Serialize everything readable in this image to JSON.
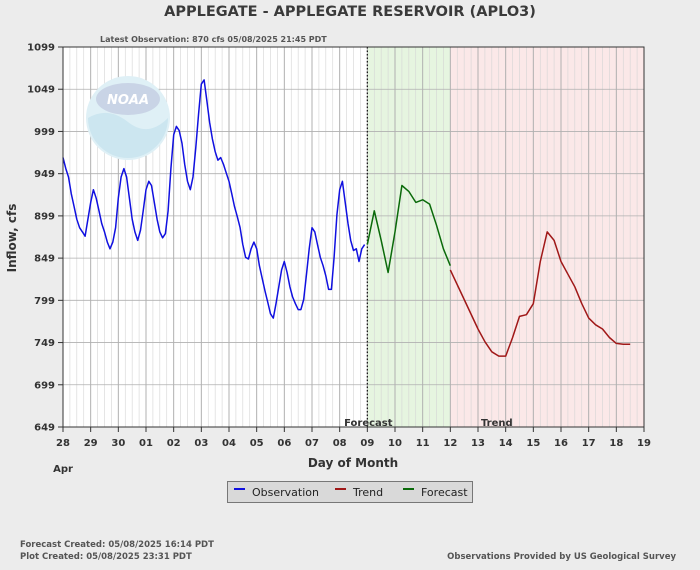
{
  "page": {
    "title": "APPLEGATE - APPLEGATE RESERVOIR  (APLO3)",
    "latest_observation": "Latest Observation: 870 cfs 05/08/2025 21:45 PDT",
    "forecast_created": "Forecast Created: 05/08/2025 16:14 PDT",
    "plot_created": "Plot Created: 05/08/2025 23:31 PDT",
    "provider": "Observations Provided by US Geological Survey",
    "logo_text": "NOAA"
  },
  "legend": [
    {
      "label": "Observation",
      "color": "#1010e0"
    },
    {
      "label": "Trend",
      "color": "#a01818"
    },
    {
      "label": "Forecast",
      "color": "#0a6a0a"
    }
  ],
  "chart_data": {
    "type": "line",
    "title": "APPLEGATE - APPLEGATE RESERVOIR  (APLO3)",
    "xlabel": "Day of Month",
    "ylabel": "Inflow, cfs",
    "x_unit": "day index (28 Apr = 0)",
    "xlim": [
      0,
      21
    ],
    "ylim": [
      649,
      1099
    ],
    "yticks": [
      649,
      699,
      749,
      799,
      849,
      899,
      949,
      999,
      1049,
      1099
    ],
    "xtick_labels": [
      "28",
      "29",
      "30",
      "01",
      "02",
      "03",
      "04",
      "05",
      "06",
      "07",
      "08",
      "09",
      "10",
      "11",
      "12",
      "13",
      "14",
      "15",
      "16",
      "17",
      "18",
      "19"
    ],
    "month_label": "Apr",
    "grid": true,
    "regions": [
      {
        "name": "Forecast",
        "label": "Forecast",
        "from": 11.0,
        "to": 14.0,
        "color": "#e6f5e0"
      },
      {
        "name": "Trend",
        "label": "Trend",
        "from": 14.0,
        "to": 21.0,
        "color": "#fbe8e8"
      }
    ],
    "current_time_x": 11.0,
    "series": [
      {
        "name": "Observation",
        "color": "#1010e0",
        "points": [
          [
            0.0,
            968
          ],
          [
            0.1,
            955
          ],
          [
            0.2,
            945
          ],
          [
            0.3,
            925
          ],
          [
            0.4,
            910
          ],
          [
            0.5,
            895
          ],
          [
            0.6,
            885
          ],
          [
            0.7,
            880
          ],
          [
            0.8,
            875
          ],
          [
            0.9,
            895
          ],
          [
            1.0,
            915
          ],
          [
            1.1,
            930
          ],
          [
            1.2,
            920
          ],
          [
            1.3,
            905
          ],
          [
            1.4,
            890
          ],
          [
            1.5,
            880
          ],
          [
            1.6,
            868
          ],
          [
            1.7,
            860
          ],
          [
            1.8,
            868
          ],
          [
            1.9,
            885
          ],
          [
            2.0,
            920
          ],
          [
            2.1,
            945
          ],
          [
            2.2,
            955
          ],
          [
            2.3,
            945
          ],
          [
            2.4,
            920
          ],
          [
            2.5,
            895
          ],
          [
            2.6,
            880
          ],
          [
            2.7,
            870
          ],
          [
            2.8,
            882
          ],
          [
            2.9,
            905
          ],
          [
            3.0,
            930
          ],
          [
            3.1,
            940
          ],
          [
            3.2,
            935
          ],
          [
            3.3,
            915
          ],
          [
            3.4,
            895
          ],
          [
            3.5,
            880
          ],
          [
            3.6,
            873
          ],
          [
            3.7,
            878
          ],
          [
            3.8,
            905
          ],
          [
            3.9,
            955
          ],
          [
            4.0,
            995
          ],
          [
            4.1,
            1005
          ],
          [
            4.2,
            1000
          ],
          [
            4.3,
            985
          ],
          [
            4.4,
            960
          ],
          [
            4.5,
            940
          ],
          [
            4.6,
            930
          ],
          [
            4.7,
            945
          ],
          [
            4.8,
            980
          ],
          [
            4.9,
            1020
          ],
          [
            5.0,
            1055
          ],
          [
            5.1,
            1060
          ],
          [
            5.2,
            1035
          ],
          [
            5.3,
            1010
          ],
          [
            5.4,
            990
          ],
          [
            5.5,
            975
          ],
          [
            5.6,
            965
          ],
          [
            5.7,
            968
          ],
          [
            5.8,
            960
          ],
          [
            5.9,
            950
          ],
          [
            6.0,
            940
          ],
          [
            6.1,
            925
          ],
          [
            6.2,
            910
          ],
          [
            6.3,
            898
          ],
          [
            6.4,
            885
          ],
          [
            6.5,
            865
          ],
          [
            6.6,
            850
          ],
          [
            6.7,
            848
          ],
          [
            6.8,
            860
          ],
          [
            6.9,
            868
          ],
          [
            7.0,
            860
          ],
          [
            7.1,
            840
          ],
          [
            7.2,
            825
          ],
          [
            7.3,
            810
          ],
          [
            7.4,
            797
          ],
          [
            7.5,
            783
          ],
          [
            7.6,
            778
          ],
          [
            7.7,
            795
          ],
          [
            7.8,
            815
          ],
          [
            7.9,
            835
          ],
          [
            8.0,
            845
          ],
          [
            8.1,
            832
          ],
          [
            8.2,
            815
          ],
          [
            8.3,
            803
          ],
          [
            8.4,
            795
          ],
          [
            8.5,
            788
          ],
          [
            8.6,
            788
          ],
          [
            8.7,
            800
          ],
          [
            8.8,
            830
          ],
          [
            8.9,
            860
          ],
          [
            9.0,
            885
          ],
          [
            9.1,
            880
          ],
          [
            9.2,
            865
          ],
          [
            9.3,
            850
          ],
          [
            9.4,
            840
          ],
          [
            9.5,
            828
          ],
          [
            9.6,
            812
          ],
          [
            9.7,
            812
          ],
          [
            9.8,
            850
          ],
          [
            9.9,
            900
          ],
          [
            10.0,
            930
          ],
          [
            10.1,
            940
          ],
          [
            10.2,
            915
          ],
          [
            10.3,
            890
          ],
          [
            10.4,
            870
          ],
          [
            10.5,
            858
          ],
          [
            10.6,
            860
          ],
          [
            10.7,
            845
          ],
          [
            10.8,
            860
          ],
          [
            10.9,
            865
          ]
        ]
      },
      {
        "name": "Forecast",
        "color": "#0a6a0a",
        "points": [
          [
            11.0,
            865
          ],
          [
            11.25,
            905
          ],
          [
            11.5,
            870
          ],
          [
            11.75,
            832
          ],
          [
            12.0,
            880
          ],
          [
            12.25,
            935
          ],
          [
            12.5,
            928
          ],
          [
            12.75,
            915
          ],
          [
            13.0,
            918
          ],
          [
            13.25,
            913
          ],
          [
            13.5,
            888
          ],
          [
            13.75,
            860
          ],
          [
            14.0,
            840
          ]
        ]
      },
      {
        "name": "Trend",
        "color": "#a01818",
        "points": [
          [
            14.0,
            835
          ],
          [
            14.5,
            800
          ],
          [
            15.0,
            765
          ],
          [
            15.25,
            750
          ],
          [
            15.5,
            738
          ],
          [
            15.75,
            733
          ],
          [
            16.0,
            733
          ],
          [
            16.25,
            755
          ],
          [
            16.5,
            780
          ],
          [
            16.75,
            782
          ],
          [
            17.0,
            795
          ],
          [
            17.25,
            845
          ],
          [
            17.5,
            880
          ],
          [
            17.75,
            870
          ],
          [
            18.0,
            845
          ],
          [
            18.25,
            830
          ],
          [
            18.5,
            815
          ],
          [
            18.75,
            795
          ],
          [
            19.0,
            778
          ],
          [
            19.25,
            770
          ],
          [
            19.5,
            765
          ],
          [
            19.75,
            755
          ],
          [
            20.0,
            748
          ],
          [
            20.25,
            747
          ],
          [
            20.5,
            747
          ]
        ]
      }
    ]
  }
}
